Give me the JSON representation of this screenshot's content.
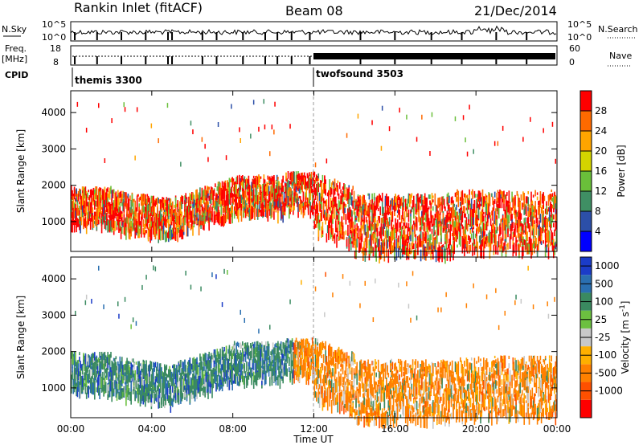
{
  "header": {
    "station": "Rankin Inlet (fitACF)",
    "beam": "Beam 08",
    "date": "21/Dec/2014"
  },
  "top_panel": {
    "nsky_label": "N.Sky",
    "nsky_ticks": [
      "10^5",
      "10^0"
    ],
    "nsearch_label": "N.Search",
    "nsearch_ticks": [
      "10^5",
      "10^0"
    ],
    "freq_label_1": "Freq.",
    "freq_label_2": "[MHz]",
    "freq_ticks": [
      "18",
      "8"
    ],
    "nave_label": "Nave",
    "nave_ticks": [
      "60",
      "0"
    ],
    "cpid_label": "CPID",
    "cpid_segments": [
      {
        "name": "themis 3300",
        "start_hour": 0,
        "end_hour": 12
      },
      {
        "name": "twofsound 3503",
        "start_hour": 12,
        "end_hour": 24
      }
    ]
  },
  "chart_data": [
    {
      "type": "heatmap",
      "title": "",
      "xlabel": "",
      "ylabel": "Slant Range [km]",
      "xlim": [
        0,
        24
      ],
      "ylim": [
        180,
        4600
      ],
      "yticks": [
        "1000",
        "2000",
        "3000",
        "4000"
      ],
      "colorbar": {
        "label": "Power [dB]",
        "range": [
          0,
          32
        ],
        "ticks": [
          "4",
          "8",
          "12",
          "16",
          "20",
          "24",
          "28"
        ],
        "colors": [
          "#0000ff",
          "#2c4fa8",
          "#3f8f64",
          "#6abf3a",
          "#d4d400",
          "#ffa500",
          "#ff6a00",
          "#ff0000"
        ]
      }
    },
    {
      "type": "heatmap",
      "title": "",
      "xlabel": "Time UT",
      "ylabel": "Slant Range [km]",
      "xlim": [
        0,
        24
      ],
      "ylim": [
        180,
        4600
      ],
      "yticks": [
        "1000",
        "2000",
        "3000",
        "4000"
      ],
      "xticks": [
        "00:00",
        "04:00",
        "08:00",
        "12:00",
        "16:00",
        "20:00",
        "00:00"
      ],
      "colorbar": {
        "label": "Velocity [m s",
        "label_sup": "-1",
        "label_end": "]",
        "ticks": [
          "1000",
          "500",
          "100",
          "25",
          "-25",
          "-100",
          "-500",
          "-1000"
        ],
        "colors": [
          "#1b3cc8",
          "#2a6fb0",
          "#3a8a60",
          "#6cc040",
          "#c8c8c8",
          "#ffb000",
          "#ff8000",
          "#ff5000",
          "#ff0000"
        ]
      }
    }
  ]
}
